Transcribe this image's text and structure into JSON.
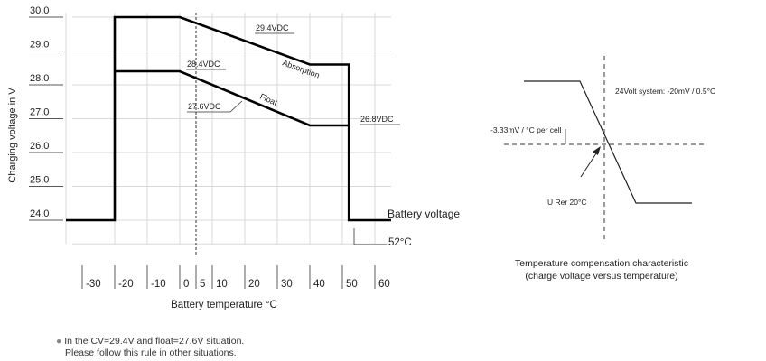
{
  "chart_data": [
    {
      "type": "line",
      "xlabel": "Battery temperature  °C",
      "ylabel": "Charging voltage in V",
      "xlim": [
        -35,
        65
      ],
      "ylim": [
        23.3,
        30.0
      ],
      "x_ticks": [
        "-30",
        "-20",
        "-10",
        "0",
        "5",
        "10",
        "20",
        "30",
        "40",
        "50",
        "60"
      ],
      "x_tick_values": [
        -30,
        -20,
        -10,
        0,
        5,
        10,
        20,
        30,
        40,
        50,
        60
      ],
      "y_ticks": [
        "24.0",
        "25.0",
        "26.0",
        "27.0",
        "28.0",
        "29.0",
        "30.0"
      ],
      "y_tick_values": [
        24,
        25,
        26,
        27,
        28,
        29,
        30
      ],
      "grid": true,
      "reference_line_x": 5,
      "series": [
        {
          "name": "Absorption",
          "x": [
            -35,
            -20,
            -20,
            0,
            40,
            52,
            52,
            65
          ],
          "y": [
            24.0,
            24.0,
            30.0,
            30.0,
            28.6,
            28.6,
            24.0,
            24.0
          ]
        },
        {
          "name": "Float",
          "x": [
            -20,
            0,
            40,
            52
          ],
          "y": [
            28.4,
            28.4,
            26.8,
            26.8
          ]
        }
      ],
      "annotations": {
        "abs_value": "29.4VDC",
        "float_value": "28.4VDC",
        "float_value2": "27.6VDC",
        "min_value": "26.8VDC",
        "battery_voltage": "Battery voltage",
        "cutoff_temp": "52°C"
      }
    },
    {
      "type": "line",
      "title": "Temperature compensation characteristic",
      "subtitle": "(charge voltage versus temperature)",
      "series": [
        {
          "x": [
            0,
            1,
            2,
            3
          ],
          "y": [
            3,
            3,
            0,
            0
          ]
        }
      ],
      "annotations": {
        "system": "24Volt system: -20mV / 0.5°C",
        "per_cell": "-3.33mV / °C per cell",
        "ref": "U Rer 20°C"
      }
    }
  ],
  "note": {
    "line1": "In the CV=29.4V and float=27.6V situation.",
    "line2": "Please follow this rule in other situations."
  }
}
